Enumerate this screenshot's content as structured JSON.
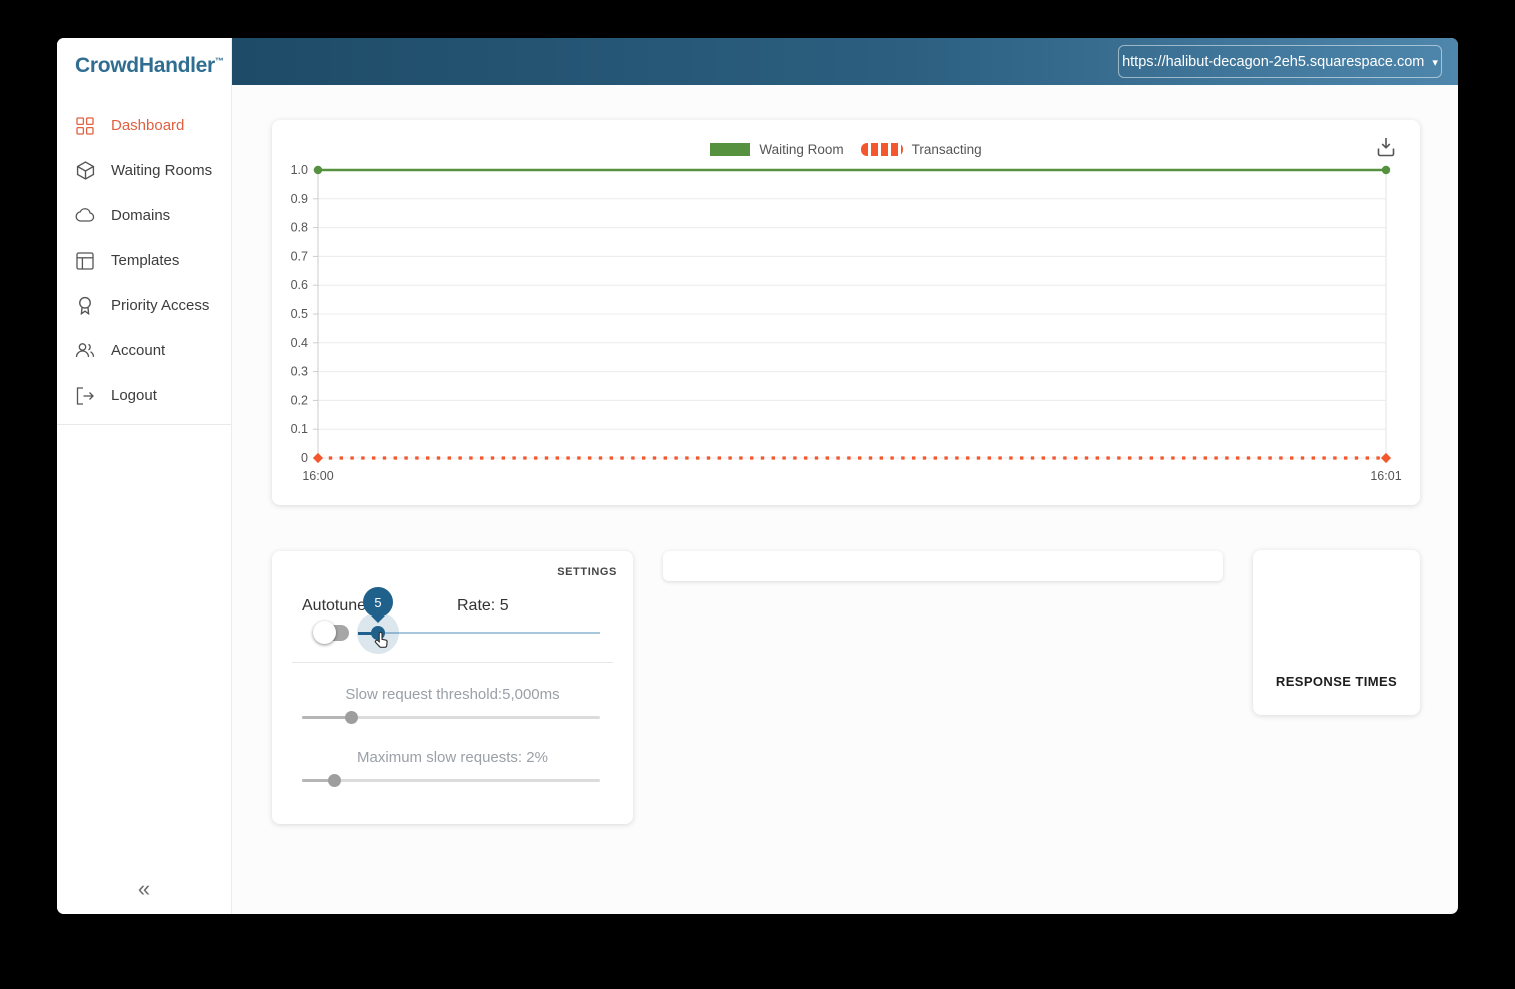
{
  "colors": {
    "brand_blue": "#2f6e91",
    "active_orange": "#e0603f",
    "header_gradient_start": "#1e4b67",
    "header_gradient_end": "#4e86ac",
    "chart_green": "#569140",
    "chart_orange": "#f4572d",
    "slider_blue": "#20618c"
  },
  "sidebar": {
    "logo": "CrowdHandler",
    "logo_tm": "™",
    "items": [
      {
        "label": "Dashboard",
        "icon": "dashboard-grid-icon",
        "active": true
      },
      {
        "label": "Waiting Rooms",
        "icon": "cube-icon",
        "active": false
      },
      {
        "label": "Domains",
        "icon": "cloud-icon",
        "active": false
      },
      {
        "label": "Templates",
        "icon": "template-icon",
        "active": false
      },
      {
        "label": "Priority Access",
        "icon": "badge-icon",
        "active": false
      },
      {
        "label": "Account",
        "icon": "users-icon",
        "active": false
      },
      {
        "label": "Logout",
        "icon": "logout-icon",
        "active": false
      }
    ],
    "collapse_icon": "«"
  },
  "header": {
    "site_url": "https://halibut-decagon-2eh5.squarespace.com",
    "caret": "▾"
  },
  "chart_data": {
    "type": "line",
    "title": "",
    "x": [
      "16:00",
      "16:01"
    ],
    "series": [
      {
        "name": "Waiting Room",
        "values": [
          1,
          1
        ],
        "color": "#569140",
        "style": "solid",
        "marker": "circle"
      },
      {
        "name": "Transacting",
        "values": [
          0,
          0
        ],
        "color": "#f4572d",
        "style": "dotted",
        "marker": "diamond"
      }
    ],
    "ylim": [
      0,
      1
    ],
    "yticks": [
      "0",
      "0.1",
      "0.2",
      "0.3",
      "0.4",
      "0.5",
      "0.6",
      "0.7",
      "0.8",
      "0.9",
      "1.0"
    ],
    "grid": true,
    "legend_position": "top"
  },
  "settings": {
    "title": "SETTINGS",
    "autotune_label": "Autotune",
    "autotune_enabled": false,
    "rate_label": "Rate: 5",
    "rate_tooltip_value": "5",
    "slow_threshold_label": "Slow request threshold:5,000ms",
    "max_slow_label": "Maximum slow requests: 2%"
  },
  "response_times": {
    "title": "RESPONSE TIMES"
  }
}
